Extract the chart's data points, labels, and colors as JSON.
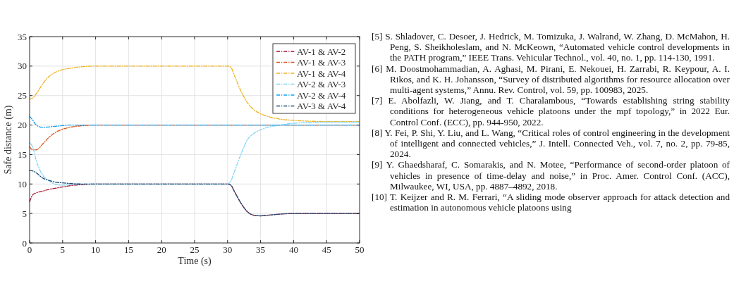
{
  "chart_data": {
    "type": "line",
    "xlabel": "Time (s)",
    "ylabel": "Safe distance (m)",
    "x": [
      0,
      0.5,
      1,
      2,
      3,
      4,
      5,
      6,
      8,
      10,
      15,
      20,
      25,
      30,
      30.5,
      31,
      32,
      33,
      34,
      35,
      36,
      38,
      40,
      45,
      50
    ],
    "series": [
      {
        "name": "AV-1 & AV-2",
        "color": "#a2142f",
        "values": [
          7.0,
          8.2,
          8.5,
          8.8,
          9.1,
          9.3,
          9.5,
          9.7,
          9.9,
          10,
          10,
          10,
          10,
          10,
          9.8,
          8.8,
          6.8,
          5.3,
          4.7,
          4.6,
          4.7,
          4.9,
          5.0,
          5.0,
          5.0
        ]
      },
      {
        "name": "AV-1 & AV-3",
        "color": "#d95319",
        "values": [
          16.3,
          15.8,
          15.8,
          16.8,
          18.0,
          18.8,
          19.3,
          19.6,
          19.9,
          20,
          20,
          20,
          20,
          20,
          20,
          20,
          20,
          20,
          20,
          20,
          20,
          20,
          20,
          20,
          20
        ]
      },
      {
        "name": "AV-1 & AV-4",
        "color": "#edb120",
        "values": [
          24.4,
          24.6,
          25.3,
          27.0,
          28.3,
          29.0,
          29.4,
          29.6,
          29.9,
          30,
          30,
          30,
          30,
          30,
          29.8,
          28.5,
          25.8,
          23.8,
          22.6,
          21.9,
          21.5,
          21.0,
          20.8,
          20.6,
          20.6
        ]
      },
      {
        "name": "AV-2 & AV-3",
        "color": "#80d4f6",
        "values": [
          17.0,
          16.2,
          14.0,
          11.5,
          10.5,
          9.9,
          9.8,
          9.9,
          10,
          10,
          10,
          10,
          10,
          10,
          10.5,
          12.0,
          15.0,
          17.5,
          18.6,
          19.2,
          19.6,
          20.0,
          20.3,
          20.5,
          20.5
        ]
      },
      {
        "name": "AV-2 & AV-4",
        "color": "#14a0f0",
        "values": [
          21.5,
          20.8,
          20.0,
          19.6,
          19.7,
          19.8,
          19.9,
          20,
          20,
          20,
          20,
          20,
          20,
          20,
          20,
          20,
          20,
          20,
          20,
          20,
          20,
          20,
          20,
          20,
          20
        ]
      },
      {
        "name": "AV-3 & AV-4",
        "color": "#1f4e79",
        "values": [
          12.3,
          12.2,
          11.9,
          11.0,
          10.6,
          10.3,
          10.2,
          10.1,
          10.0,
          10,
          10,
          10,
          10,
          10,
          9.8,
          8.8,
          6.8,
          5.3,
          4.7,
          4.6,
          4.7,
          4.9,
          5.0,
          5.0,
          5.0
        ]
      }
    ],
    "xlim": [
      0,
      50
    ],
    "xticks": [
      0,
      5,
      10,
      15,
      20,
      25,
      30,
      35,
      40,
      45,
      50
    ],
    "ylim": [
      0,
      35
    ],
    "yticks": [
      0,
      5,
      10,
      15,
      20,
      25,
      30,
      35
    ],
    "grid": true,
    "legend": "top right",
    "line_style": "dashed",
    "marker": "none",
    "annotations": [
      "[5] S. Shladover, C. Desoer, J. Hedrick, M. Tomizuka, J. Walrand, W. Zhang, D. McMahon, H. Peng, S. Sheikholeslam, and N. McKeown, “Automated vehicle control developments in the PATH program,” IEEE Trans. Vehicular Technol., vol. 40, no. 1, pp. 114-130, 1991.",
      "[6] M. Doostmohammadian, A. Aghasi, M. Pirani, E. Nekouei, H. Zarrabi, R. Keypour, A. I. Rikos, and K. H. Johansson, “Survey of distributed algorithms for resource allocation over multi-agent systems,” Annu. Rev. Control, vol. 59, pp. 100983, 2025.",
      "[7] E. Abolfazli, W. Jiang, and T. Charalambous, “Towards establishing string stability conditions for heterogeneous vehicle platoons under the mpf topology,” in 2022 Eur. Control Conf. (ECC), pp. 944-950, 2022.",
      "[8] Y. Fei, P. Shi, Y. Liu, and L. Wang, “Critical roles of control engineering in the development of intelligent and connected vehicles,” J. Intell. Connected Veh., vol. 7, no. 2, pp. 79-85, 2024.",
      "[9] Y. Ghaedsharaf, C. Somarakis, and N. Motee, “Performance of second-order platoon of vehicles in presence of time-delay and noise,” in Proc. Amer. Control Conf. (ACC), Milwaukee, WI, USA, pp. 4887–4892, 2018.",
      "[10] T. Keijzer and R. M. Ferrari, “A sliding mode observer approach for attack detection and estimation in autonomous vehicle platoons using"
    ]
  }
}
